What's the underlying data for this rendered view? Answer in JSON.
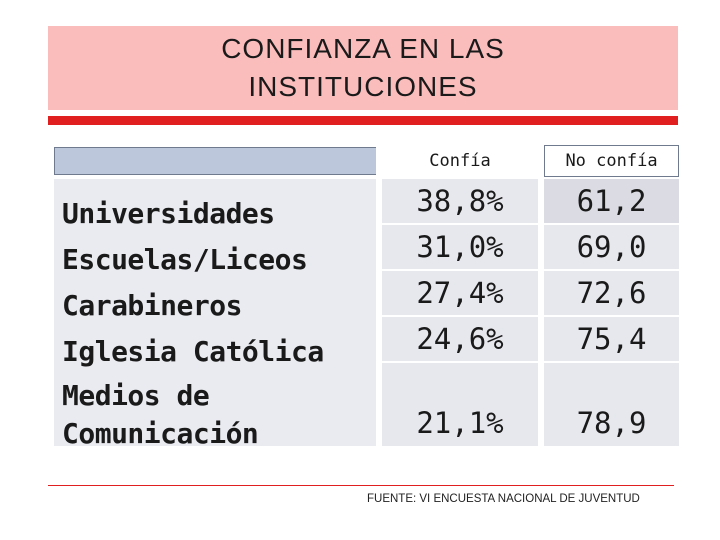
{
  "title": "CONFIANZA EN LAS INSTITUCIONES",
  "table": {
    "headers": {
      "confia": "Confía",
      "no_confia": "No confía"
    },
    "rows": [
      {
        "label": "Universidades",
        "confia": "38,8%",
        "no_confia": "61,2"
      },
      {
        "label": "Escuelas/Liceos",
        "confia": "31,0%",
        "no_confia": "69,0"
      },
      {
        "label": "Carabineros",
        "confia": "27,4%",
        "no_confia": "72,6"
      },
      {
        "label": "Iglesia Católica",
        "confia": "24,6%",
        "no_confia": "75,4"
      },
      {
        "label": "Medios de Comunicación",
        "confia": "21,1%",
        "no_confia": "78,9"
      }
    ]
  },
  "source": "FUENTE: VI ENCUESTA NACIONAL DE JUVENTUD",
  "colors": {
    "title_bg": "#fbbcbc",
    "accent_red": "#e02020",
    "header_bar": "#bcc7db",
    "cell_bg": "#e7e8ee"
  }
}
